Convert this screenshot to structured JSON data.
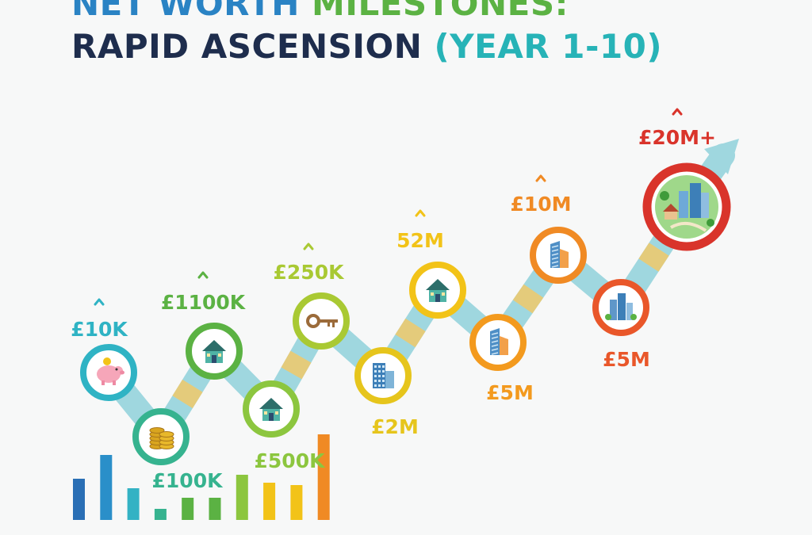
{
  "title": {
    "line1_part1": "NET WORTH",
    "line1_part2": "MILESTONES:",
    "line2_part1": "RAPID ASCENSION",
    "line2_part2": "(YEAR 1-10)"
  },
  "milestones": [
    {
      "label": "£10K",
      "icon": "piggy-bank-icon",
      "color": "#2fb3c4",
      "caret": true
    },
    {
      "label": "£100K",
      "icon": "coins-icon",
      "color": "#36b38f",
      "caret": false
    },
    {
      "label": "£1100K",
      "icon": "house-icon",
      "color": "#5bb243",
      "caret": true
    },
    {
      "label": "£500K",
      "icon": "house-icon",
      "color": "#8cc63f",
      "caret": false
    },
    {
      "label": "£250K",
      "icon": "key-icon",
      "color": "#a9c933",
      "caret": true
    },
    {
      "label": "£2M",
      "icon": "building-icon",
      "color": "#e6c51c",
      "caret": false
    },
    {
      "label": "52M",
      "icon": "house-icon",
      "color": "#f2c318",
      "caret": true
    },
    {
      "label": "£5M",
      "icon": "skyscraper-icon",
      "color": "#f39a1e",
      "caret": false
    },
    {
      "label": "£10M",
      "icon": "skyscraper-icon",
      "color": "#f08a24",
      "caret": true
    },
    {
      "label": "£5M",
      "icon": "city-icon",
      "color": "#e9572a",
      "caret": false
    },
    {
      "label": "£20M+",
      "icon": "city-park-icon",
      "color": "#d9342b",
      "caret": true
    }
  ],
  "bars": {
    "values": [
      52,
      82,
      40,
      14,
      28,
      28,
      57,
      47,
      44,
      108
    ],
    "colors": [
      "#2a6fb5",
      "#2a8fc9",
      "#33b2c4",
      "#36b38f",
      "#5bb243",
      "#5bb243",
      "#8cc63f",
      "#f2c318",
      "#f2c318",
      "#f08a24"
    ]
  },
  "colors": {
    "arrow_main": "#9fd7df",
    "arrow_segment": "#f1c96a",
    "title_dark": "#1e2d4d"
  }
}
